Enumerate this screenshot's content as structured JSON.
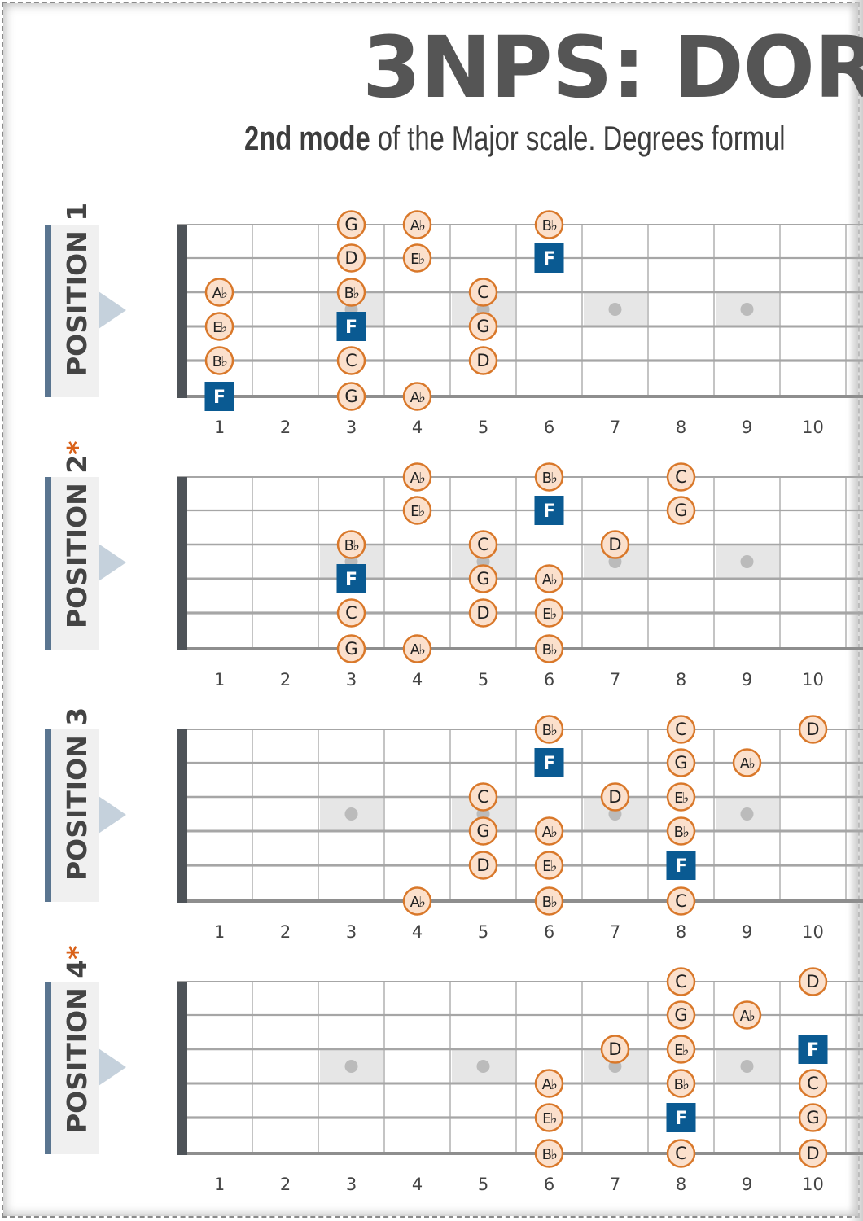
{
  "title": "3NPS: DOR",
  "subtitle": {
    "bold": "2nd mode",
    "rest": " of the Major scale. Degrees formul"
  },
  "colors": {
    "note_fill": "#fbe0cc",
    "note_stroke": "#d9782a",
    "root_fill": "#0a5a92",
    "label_bar": "#5a7590",
    "asterisk": "#d9621a",
    "inlay": "#e6e6e6"
  },
  "fret_numbers": [
    "1",
    "2",
    "3",
    "4",
    "5",
    "6",
    "7",
    "8",
    "9",
    "10"
  ],
  "inlay_frets": [
    3,
    5,
    7,
    9
  ],
  "positions": [
    {
      "label": "POSITION 1",
      "asterisk": "",
      "notes": [
        {
          "string": 1,
          "fret": 3,
          "note": "G"
        },
        {
          "string": 1,
          "fret": 4,
          "note": "A♭"
        },
        {
          "string": 1,
          "fret": 6,
          "note": "B♭"
        },
        {
          "string": 2,
          "fret": 3,
          "note": "D"
        },
        {
          "string": 2,
          "fret": 4,
          "note": "E♭"
        },
        {
          "string": 2,
          "fret": 6,
          "note": "F",
          "root": true
        },
        {
          "string": 3,
          "fret": 1,
          "note": "A♭"
        },
        {
          "string": 3,
          "fret": 3,
          "note": "B♭"
        },
        {
          "string": 3,
          "fret": 5,
          "note": "C"
        },
        {
          "string": 4,
          "fret": 1,
          "note": "E♭"
        },
        {
          "string": 4,
          "fret": 3,
          "note": "F",
          "root": true
        },
        {
          "string": 4,
          "fret": 5,
          "note": "G"
        },
        {
          "string": 5,
          "fret": 1,
          "note": "B♭"
        },
        {
          "string": 5,
          "fret": 3,
          "note": "C"
        },
        {
          "string": 5,
          "fret": 5,
          "note": "D"
        },
        {
          "string": 6,
          "fret": 1,
          "note": "F",
          "root": true
        },
        {
          "string": 6,
          "fret": 3,
          "note": "G"
        },
        {
          "string": 6,
          "fret": 4,
          "note": "A♭"
        }
      ]
    },
    {
      "label": "POSITION 2",
      "asterisk": "*",
      "notes": [
        {
          "string": 1,
          "fret": 4,
          "note": "A♭"
        },
        {
          "string": 1,
          "fret": 6,
          "note": "B♭"
        },
        {
          "string": 1,
          "fret": 8,
          "note": "C"
        },
        {
          "string": 2,
          "fret": 4,
          "note": "E♭"
        },
        {
          "string": 2,
          "fret": 6,
          "note": "F",
          "root": true
        },
        {
          "string": 2,
          "fret": 8,
          "note": "G"
        },
        {
          "string": 3,
          "fret": 3,
          "note": "B♭"
        },
        {
          "string": 3,
          "fret": 5,
          "note": "C"
        },
        {
          "string": 3,
          "fret": 7,
          "note": "D"
        },
        {
          "string": 4,
          "fret": 3,
          "note": "F",
          "root": true
        },
        {
          "string": 4,
          "fret": 5,
          "note": "G"
        },
        {
          "string": 4,
          "fret": 6,
          "note": "A♭"
        },
        {
          "string": 5,
          "fret": 3,
          "note": "C"
        },
        {
          "string": 5,
          "fret": 5,
          "note": "D"
        },
        {
          "string": 5,
          "fret": 6,
          "note": "E♭"
        },
        {
          "string": 6,
          "fret": 3,
          "note": "G"
        },
        {
          "string": 6,
          "fret": 4,
          "note": "A♭"
        },
        {
          "string": 6,
          "fret": 6,
          "note": "B♭"
        }
      ]
    },
    {
      "label": "POSITION 3",
      "asterisk": "",
      "notes": [
        {
          "string": 1,
          "fret": 6,
          "note": "B♭"
        },
        {
          "string": 1,
          "fret": 8,
          "note": "C"
        },
        {
          "string": 1,
          "fret": 10,
          "note": "D"
        },
        {
          "string": 2,
          "fret": 6,
          "note": "F",
          "root": true
        },
        {
          "string": 2,
          "fret": 8,
          "note": "G"
        },
        {
          "string": 2,
          "fret": 9,
          "note": "A♭"
        },
        {
          "string": 3,
          "fret": 5,
          "note": "C"
        },
        {
          "string": 3,
          "fret": 7,
          "note": "D"
        },
        {
          "string": 3,
          "fret": 8,
          "note": "E♭"
        },
        {
          "string": 4,
          "fret": 5,
          "note": "G"
        },
        {
          "string": 4,
          "fret": 6,
          "note": "A♭"
        },
        {
          "string": 4,
          "fret": 8,
          "note": "B♭"
        },
        {
          "string": 5,
          "fret": 5,
          "note": "D"
        },
        {
          "string": 5,
          "fret": 6,
          "note": "E♭"
        },
        {
          "string": 5,
          "fret": 8,
          "note": "F",
          "root": true
        },
        {
          "string": 6,
          "fret": 4,
          "note": "A♭"
        },
        {
          "string": 6,
          "fret": 6,
          "note": "B♭"
        },
        {
          "string": 6,
          "fret": 8,
          "note": "C"
        }
      ]
    },
    {
      "label": "POSITION 4",
      "asterisk": "*",
      "notes": [
        {
          "string": 1,
          "fret": 8,
          "note": "C"
        },
        {
          "string": 1,
          "fret": 10,
          "note": "D"
        },
        {
          "string": 2,
          "fret": 8,
          "note": "G"
        },
        {
          "string": 2,
          "fret": 9,
          "note": "A♭"
        },
        {
          "string": 3,
          "fret": 7,
          "note": "D"
        },
        {
          "string": 3,
          "fret": 8,
          "note": "E♭"
        },
        {
          "string": 3,
          "fret": 10,
          "note": "F",
          "root": true
        },
        {
          "string": 4,
          "fret": 6,
          "note": "A♭"
        },
        {
          "string": 4,
          "fret": 8,
          "note": "B♭"
        },
        {
          "string": 4,
          "fret": 10,
          "note": "C"
        },
        {
          "string": 5,
          "fret": 6,
          "note": "E♭"
        },
        {
          "string": 5,
          "fret": 8,
          "note": "F",
          "root": true
        },
        {
          "string": 5,
          "fret": 10,
          "note": "G"
        },
        {
          "string": 6,
          "fret": 6,
          "note": "B♭"
        },
        {
          "string": 6,
          "fret": 8,
          "note": "C"
        },
        {
          "string": 6,
          "fret": 10,
          "note": "D"
        }
      ]
    }
  ]
}
